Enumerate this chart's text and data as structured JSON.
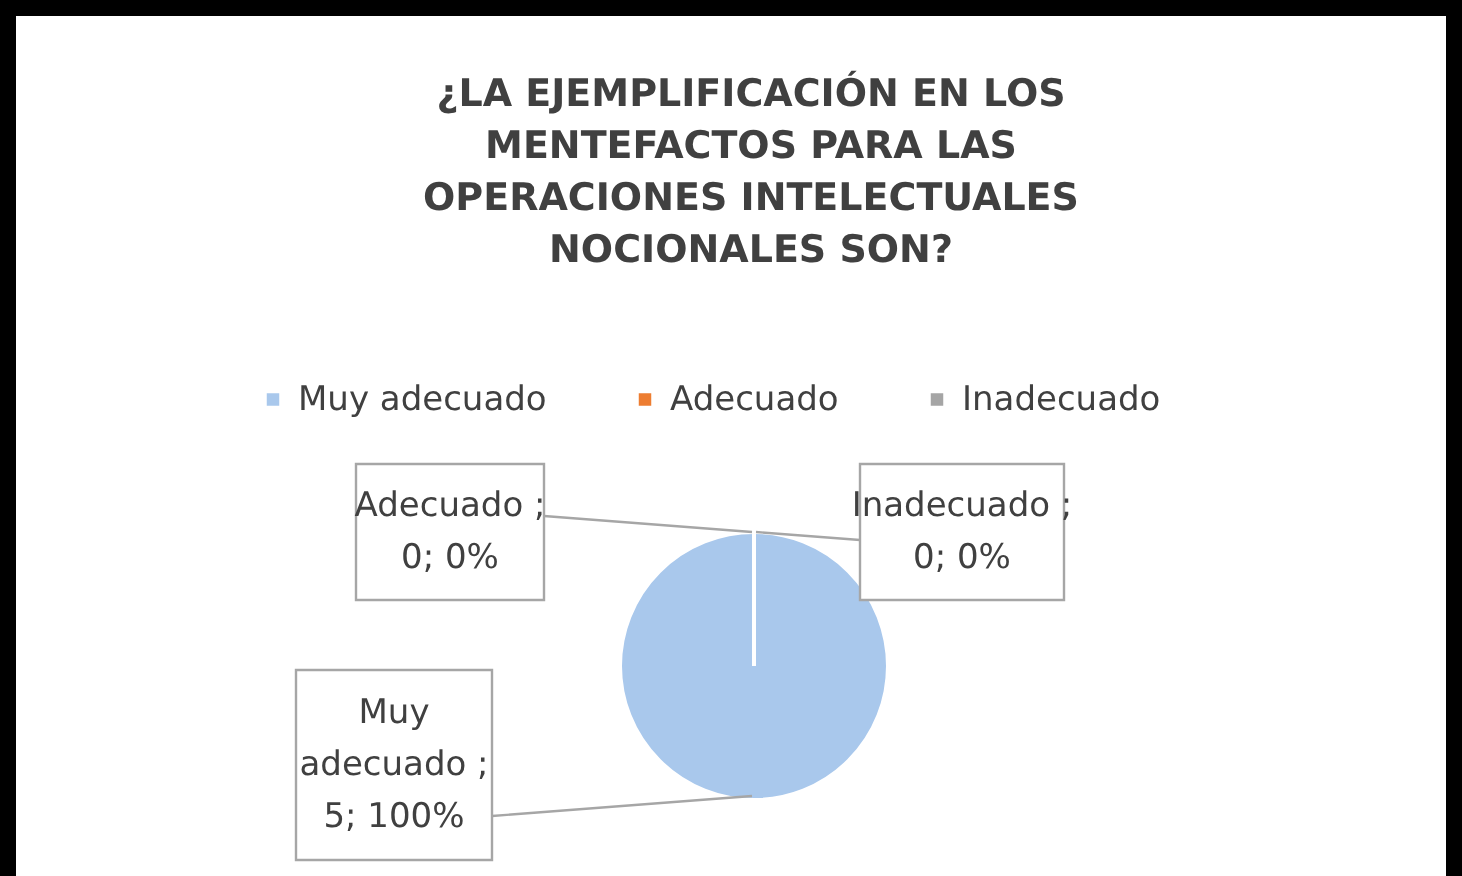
{
  "chart_data": {
    "type": "pie",
    "title": "¿LA EJEMPLIFICACIÓN EN LOS MENTEFACTOS PARA LAS OPERACIONES INTELECTUALES NOCIONALES SON?",
    "categories": [
      "Muy adecuado",
      "Adecuado",
      "Inadecuado"
    ],
    "values": [
      5,
      0,
      0
    ],
    "colors": [
      "#a9c8ec",
      "#ed7d31",
      "#a5a5a5"
    ],
    "value_labels": [
      "Muy adecuado ; 5; 100%",
      "Adecuado ; 0; 0%",
      "Inadecuado ; 0; 0%"
    ],
    "legend": "top"
  }
}
